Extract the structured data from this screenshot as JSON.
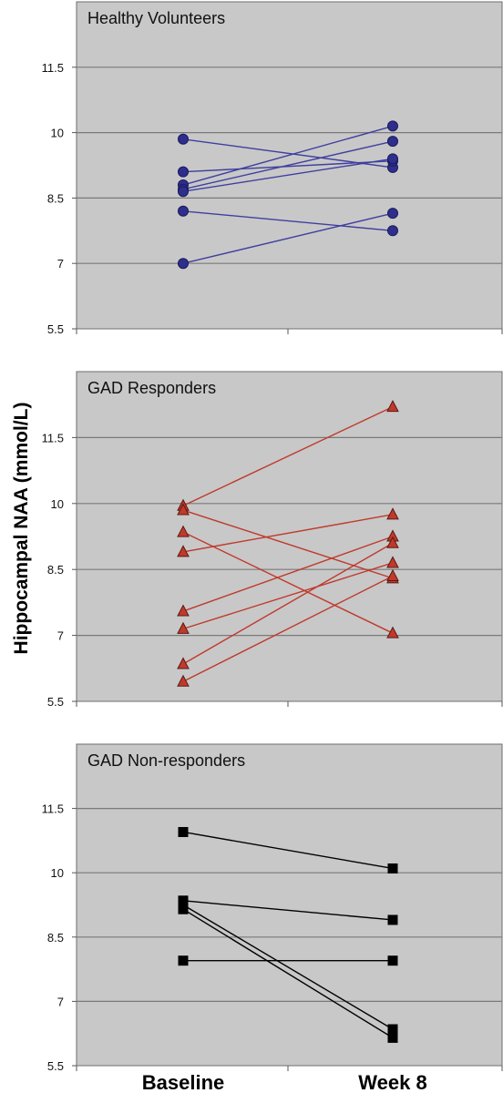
{
  "chart_data": {
    "type": "line",
    "ylabel": "Hippocampal NAA (mmol/L)",
    "categories": [
      "Baseline",
      "Week 8"
    ],
    "panels": [
      {
        "title": "Healthy Volunteers",
        "ylim": [
          5.5,
          13
        ],
        "yticks": [
          "11.5",
          "10",
          "8.5",
          "7",
          "5.5"
        ],
        "marker": "circle",
        "color": "#2e2e8c",
        "line_color": "#3f3fa0",
        "pairs": [
          [
            9.85,
            9.2
          ],
          [
            9.1,
            9.35
          ],
          [
            8.8,
            10.15
          ],
          [
            8.7,
            9.8
          ],
          [
            8.65,
            9.4
          ],
          [
            8.2,
            7.75
          ],
          [
            7.0,
            8.15
          ]
        ]
      },
      {
        "title": "GAD Responders",
        "ylim": [
          5.5,
          13
        ],
        "yticks": [
          "11.5",
          "10",
          "8.5",
          "7",
          "5.5"
        ],
        "marker": "triangle",
        "color": "#c0392b",
        "line_color": "#c0392b",
        "pairs": [
          [
            9.95,
            12.2
          ],
          [
            9.85,
            8.3
          ],
          [
            9.35,
            7.05
          ],
          [
            8.9,
            9.75
          ],
          [
            7.55,
            9.25
          ],
          [
            7.15,
            8.65
          ],
          [
            6.35,
            9.1
          ],
          [
            5.95,
            8.35
          ]
        ]
      },
      {
        "title": "GAD Non-responders",
        "ylim": [
          5.5,
          13
        ],
        "yticks": [
          "11.5",
          "10",
          "8.5",
          "7",
          "5.5"
        ],
        "marker": "square",
        "color": "#000000",
        "line_color": "#000000",
        "pairs": [
          [
            10.95,
            10.1
          ],
          [
            9.35,
            8.9
          ],
          [
            9.25,
            6.35
          ],
          [
            9.15,
            6.15
          ],
          [
            7.95,
            7.95
          ]
        ]
      }
    ]
  }
}
